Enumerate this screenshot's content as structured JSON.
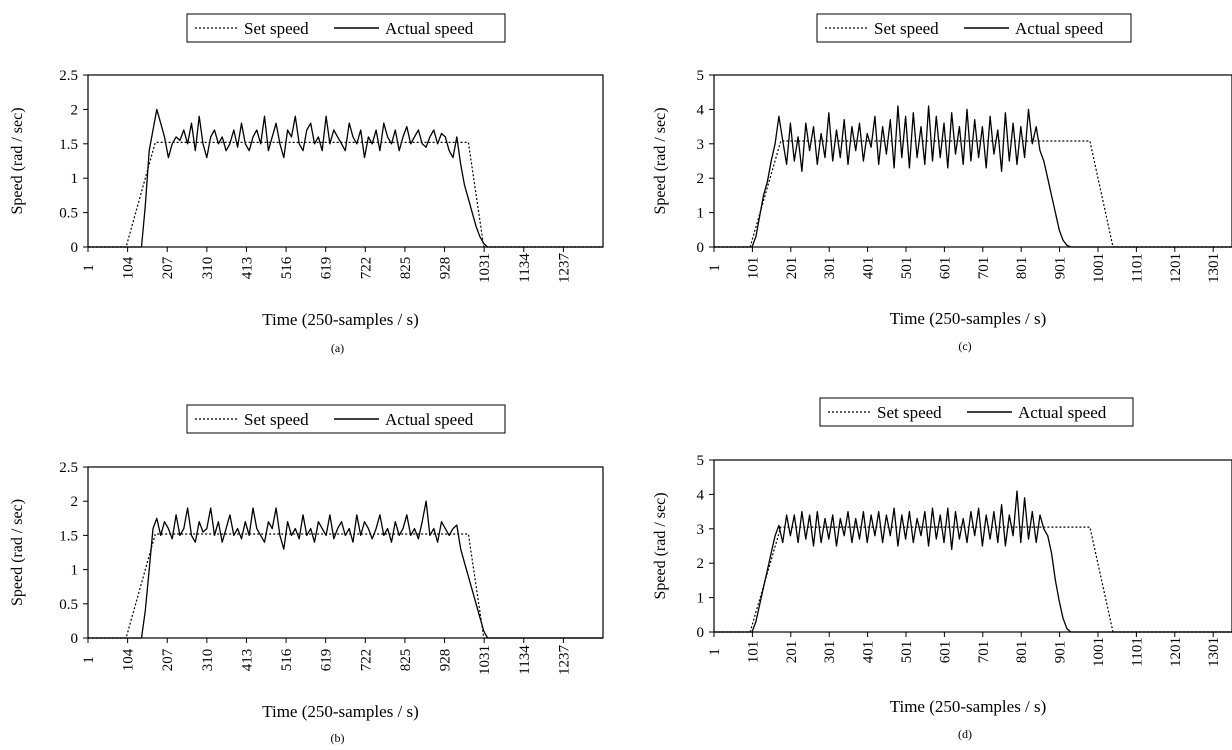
{
  "chart_data": [
    {
      "id": "a",
      "type": "line",
      "caption": "(a)",
      "xlabel": "Time (250-samples / s)",
      "ylabel": "Speed (rad / sec)",
      "x_ticks": [
        "1",
        "104",
        "207",
        "310",
        "413",
        "516",
        "619",
        "722",
        "825",
        "928",
        "1031",
        "1134",
        "1237"
      ],
      "xlim": [
        1,
        1340
      ],
      "ylim": [
        0,
        2.5
      ],
      "y_ticks": [
        "0",
        "0.5",
        "1",
        "1.5",
        "2",
        "2.5"
      ],
      "legend": {
        "placement": "top-center",
        "entries": [
          "Set speed",
          "Actual speed"
        ]
      },
      "series": [
        {
          "name": "Set speed",
          "style": "dotted",
          "x": [
            1,
            100,
            176,
            990,
            1030,
            1340
          ],
          "y": [
            0,
            0,
            1.52,
            1.52,
            0,
            0
          ]
        },
        {
          "name": "Actual speed",
          "style": "solid",
          "x": [
            1,
            140,
            150,
            160,
            170,
            180,
            190,
            200,
            210,
            220,
            230,
            240,
            250,
            260,
            270,
            280,
            290,
            300,
            310,
            320,
            330,
            340,
            350,
            360,
            370,
            380,
            390,
            400,
            410,
            420,
            430,
            440,
            450,
            460,
            470,
            480,
            490,
            500,
            510,
            520,
            530,
            540,
            550,
            560,
            570,
            580,
            590,
            600,
            610,
            620,
            630,
            640,
            650,
            660,
            670,
            680,
            690,
            700,
            710,
            720,
            730,
            740,
            750,
            760,
            770,
            780,
            790,
            800,
            810,
            820,
            830,
            840,
            850,
            860,
            870,
            880,
            890,
            900,
            910,
            920,
            930,
            940,
            950,
            960,
            970,
            980,
            990,
            1000,
            1010,
            1020,
            1030,
            1040,
            1340
          ],
          "y": [
            0,
            0,
            0.6,
            1.4,
            1.7,
            2.0,
            1.8,
            1.6,
            1.3,
            1.5,
            1.6,
            1.55,
            1.7,
            1.5,
            1.8,
            1.4,
            1.9,
            1.5,
            1.3,
            1.6,
            1.7,
            1.5,
            1.6,
            1.4,
            1.5,
            1.7,
            1.45,
            1.8,
            1.5,
            1.4,
            1.6,
            1.7,
            1.5,
            1.9,
            1.4,
            1.6,
            1.8,
            1.5,
            1.3,
            1.7,
            1.6,
            1.9,
            1.5,
            1.4,
            1.7,
            1.8,
            1.5,
            1.6,
            1.4,
            1.9,
            1.5,
            1.7,
            1.6,
            1.5,
            1.4,
            1.8,
            1.6,
            1.5,
            1.7,
            1.3,
            1.6,
            1.5,
            1.7,
            1.4,
            1.8,
            1.6,
            1.5,
            1.7,
            1.4,
            1.6,
            1.75,
            1.5,
            1.6,
            1.7,
            1.5,
            1.45,
            1.6,
            1.7,
            1.5,
            1.65,
            1.6,
            1.4,
            1.3,
            1.6,
            1.2,
            0.9,
            0.7,
            0.5,
            0.3,
            0.15,
            0.05,
            0,
            0
          ]
        }
      ]
    },
    {
      "id": "b",
      "type": "line",
      "caption": "(b)",
      "xlabel": "Time (250-samples / s)",
      "ylabel": "Speed (rad / sec)",
      "x_ticks": [
        "1",
        "104",
        "207",
        "310",
        "413",
        "516",
        "619",
        "722",
        "825",
        "928",
        "1031",
        "1134",
        "1237"
      ],
      "xlim": [
        1,
        1340
      ],
      "ylim": [
        0,
        2.5
      ],
      "y_ticks": [
        "0",
        "0.5",
        "1",
        "1.5",
        "2",
        "2.5"
      ],
      "legend": {
        "placement": "top-center",
        "entries": [
          "Set speed",
          "Actual speed"
        ]
      },
      "series": [
        {
          "name": "Set speed",
          "style": "dotted",
          "x": [
            1,
            100,
            176,
            990,
            1030,
            1340
          ],
          "y": [
            0,
            0,
            1.52,
            1.52,
            0,
            0
          ]
        },
        {
          "name": "Actual speed",
          "style": "solid",
          "x": [
            1,
            140,
            150,
            160,
            170,
            180,
            190,
            200,
            210,
            220,
            230,
            240,
            250,
            260,
            270,
            280,
            290,
            300,
            310,
            320,
            330,
            340,
            350,
            360,
            370,
            380,
            390,
            400,
            410,
            420,
            430,
            440,
            450,
            460,
            470,
            480,
            490,
            500,
            510,
            520,
            530,
            540,
            550,
            560,
            570,
            580,
            590,
            600,
            610,
            620,
            630,
            640,
            650,
            660,
            670,
            680,
            690,
            700,
            710,
            720,
            730,
            740,
            750,
            760,
            770,
            780,
            790,
            800,
            810,
            820,
            830,
            840,
            850,
            860,
            870,
            880,
            890,
            900,
            910,
            920,
            930,
            940,
            950,
            960,
            970,
            980,
            990,
            1000,
            1010,
            1020,
            1030,
            1040,
            1340
          ],
          "y": [
            0,
            0,
            0.4,
            1.0,
            1.6,
            1.75,
            1.5,
            1.7,
            1.6,
            1.45,
            1.8,
            1.5,
            1.6,
            1.9,
            1.5,
            1.4,
            1.7,
            1.55,
            1.6,
            1.9,
            1.5,
            1.7,
            1.4,
            1.6,
            1.8,
            1.5,
            1.6,
            1.45,
            1.7,
            1.5,
            1.9,
            1.6,
            1.5,
            1.4,
            1.7,
            1.6,
            1.9,
            1.5,
            1.3,
            1.7,
            1.5,
            1.6,
            1.45,
            1.8,
            1.5,
            1.6,
            1.4,
            1.7,
            1.6,
            1.5,
            1.8,
            1.45,
            1.6,
            1.7,
            1.5,
            1.6,
            1.4,
            1.8,
            1.5,
            1.7,
            1.6,
            1.45,
            1.6,
            1.8,
            1.5,
            1.6,
            1.4,
            1.7,
            1.5,
            1.6,
            1.8,
            1.5,
            1.6,
            1.45,
            1.7,
            2.0,
            1.5,
            1.6,
            1.4,
            1.7,
            1.6,
            1.5,
            1.6,
            1.65,
            1.3,
            1.1,
            0.9,
            0.7,
            0.5,
            0.3,
            0.1,
            0,
            0
          ]
        }
      ]
    },
    {
      "id": "c",
      "type": "line",
      "caption": "(c)",
      "xlabel": "Time (250-samples / s)",
      "ylabel": "Speed (rad / sec)",
      "x_ticks": [
        "1",
        "101",
        "201",
        "301",
        "401",
        "501",
        "601",
        "701",
        "801",
        "901",
        "1001",
        "1101",
        "1201",
        "1301"
      ],
      "xlim": [
        1,
        1350
      ],
      "ylim": [
        0,
        5
      ],
      "y_ticks": [
        "0",
        "1",
        "2",
        "3",
        "4",
        "5"
      ],
      "legend": {
        "placement": "top-center",
        "entries": [
          "Set speed",
          "Actual speed"
        ]
      },
      "series": [
        {
          "name": "Set speed",
          "style": "dotted",
          "x": [
            1,
            95,
            175,
            980,
            1040,
            1350
          ],
          "y": [
            0,
            0,
            3.08,
            3.08,
            0,
            0
          ]
        },
        {
          "name": "Actual speed",
          "style": "solid",
          "x": [
            1,
            100,
            110,
            120,
            130,
            140,
            150,
            160,
            170,
            180,
            190,
            200,
            210,
            220,
            230,
            240,
            250,
            260,
            270,
            280,
            290,
            300,
            310,
            320,
            330,
            340,
            350,
            360,
            370,
            380,
            390,
            400,
            410,
            420,
            430,
            440,
            450,
            460,
            470,
            480,
            490,
            500,
            510,
            520,
            530,
            540,
            550,
            560,
            570,
            580,
            590,
            600,
            610,
            620,
            630,
            640,
            650,
            660,
            670,
            680,
            690,
            700,
            710,
            720,
            730,
            740,
            750,
            760,
            770,
            780,
            790,
            800,
            810,
            820,
            830,
            840,
            850,
            860,
            870,
            880,
            890,
            900,
            910,
            920,
            930,
            940,
            950,
            960,
            970,
            980,
            990,
            1000,
            1010,
            1020,
            1030,
            1040,
            1050,
            1350
          ],
          "y": [
            0,
            0,
            0.3,
            0.9,
            1.5,
            1.9,
            2.5,
            3.0,
            3.8,
            3.1,
            2.4,
            3.6,
            2.5,
            3.2,
            2.2,
            3.6,
            2.8,
            3.5,
            2.4,
            3.3,
            2.6,
            3.9,
            2.5,
            3.4,
            2.6,
            3.7,
            2.4,
            3.5,
            2.8,
            3.6,
            2.5,
            3.3,
            2.9,
            3.8,
            2.4,
            3.5,
            2.7,
            3.7,
            2.3,
            4.1,
            2.6,
            3.8,
            2.3,
            3.9,
            2.6,
            3.5,
            2.4,
            4.1,
            2.5,
            3.8,
            2.6,
            3.6,
            2.3,
            3.9,
            2.7,
            3.5,
            2.4,
            4.0,
            2.5,
            3.7,
            2.6,
            3.5,
            2.3,
            3.8,
            2.7,
            3.4,
            2.2,
            3.9,
            2.5,
            3.6,
            2.4,
            3.5,
            2.6,
            4.0,
            3.0,
            3.5,
            2.8,
            2.5,
            2.0,
            1.5,
            1.0,
            0.5,
            0.2,
            0.05,
            0,
            0,
            0,
            0,
            0,
            0,
            0,
            0,
            0,
            0,
            0,
            0,
            0,
            0
          ]
        }
      ]
    },
    {
      "id": "d",
      "type": "line",
      "caption": "(d)",
      "xlabel": "Time (250-samples / s)",
      "ylabel": "Speed (rad / sec)",
      "x_ticks": [
        "1",
        "101",
        "201",
        "301",
        "401",
        "501",
        "601",
        "701",
        "801",
        "901",
        "1001",
        "1101",
        "1201",
        "1301"
      ],
      "xlim": [
        1,
        1350
      ],
      "ylim": [
        0,
        5
      ],
      "y_ticks": [
        "0",
        "1",
        "2",
        "3",
        "4",
        "5"
      ],
      "legend": {
        "placement": "top-center",
        "entries": [
          "Set speed",
          "Actual speed"
        ]
      },
      "series": [
        {
          "name": "Set speed",
          "style": "dotted",
          "x": [
            1,
            95,
            175,
            980,
            1040,
            1350
          ],
          "y": [
            0,
            0,
            3.05,
            3.05,
            0,
            0
          ]
        },
        {
          "name": "Actual speed",
          "style": "solid",
          "x": [
            1,
            100,
            110,
            120,
            130,
            140,
            150,
            160,
            170,
            180,
            190,
            200,
            210,
            220,
            230,
            240,
            250,
            260,
            270,
            280,
            290,
            300,
            310,
            320,
            330,
            340,
            350,
            360,
            370,
            380,
            390,
            400,
            410,
            420,
            430,
            440,
            450,
            460,
            470,
            480,
            490,
            500,
            510,
            520,
            530,
            540,
            550,
            560,
            570,
            580,
            590,
            600,
            610,
            620,
            630,
            640,
            650,
            660,
            670,
            680,
            690,
            700,
            710,
            720,
            730,
            740,
            750,
            760,
            770,
            780,
            790,
            800,
            810,
            820,
            830,
            840,
            850,
            860,
            870,
            880,
            890,
            900,
            910,
            920,
            930,
            940,
            950,
            960,
            970,
            980,
            990,
            1000,
            1010,
            1020,
            1030,
            1040,
            1050,
            1350
          ],
          "y": [
            0,
            0,
            0.3,
            0.8,
            1.3,
            1.8,
            2.3,
            2.8,
            3.1,
            2.6,
            3.4,
            2.8,
            3.4,
            2.6,
            3.5,
            2.7,
            3.4,
            2.5,
            3.5,
            2.6,
            3.3,
            2.7,
            3.4,
            2.5,
            3.3,
            2.8,
            3.5,
            2.6,
            3.3,
            2.7,
            3.5,
            2.6,
            3.4,
            2.8,
            3.5,
            2.6,
            3.4,
            2.8,
            3.6,
            2.5,
            3.4,
            2.7,
            3.5,
            2.6,
            3.3,
            2.8,
            3.5,
            2.5,
            3.6,
            2.7,
            3.4,
            2.6,
            3.6,
            2.4,
            3.5,
            2.7,
            3.3,
            2.6,
            3.5,
            2.8,
            3.6,
            2.5,
            3.4,
            2.7,
            3.5,
            2.6,
            3.7,
            2.5,
            3.4,
            2.8,
            4.1,
            2.6,
            3.9,
            2.7,
            3.5,
            2.6,
            3.4,
            3.0,
            2.8,
            2.3,
            1.5,
            0.9,
            0.4,
            0.1,
            0,
            0,
            0,
            0,
            0,
            0,
            0,
            0,
            0,
            0,
            0,
            0,
            0,
            0
          ]
        }
      ]
    }
  ]
}
